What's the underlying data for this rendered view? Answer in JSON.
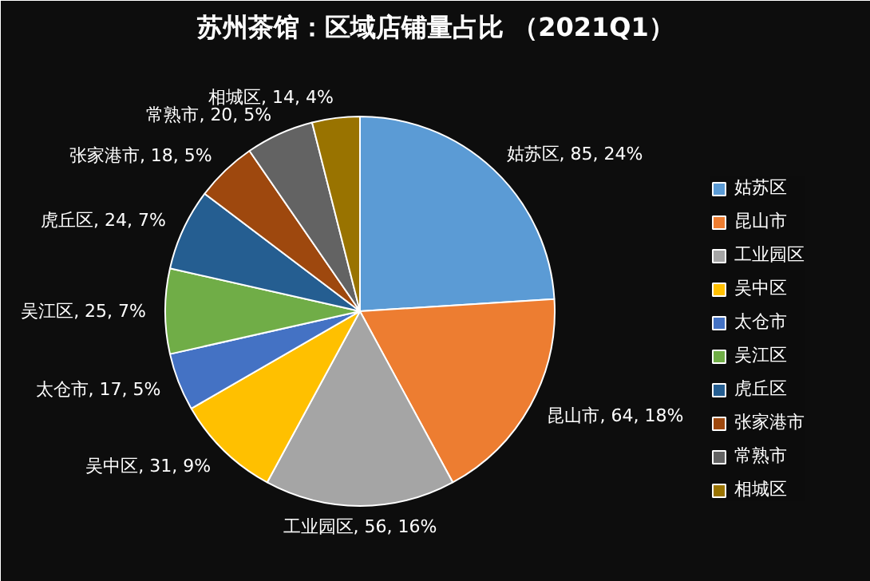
{
  "chart_data": {
    "type": "pie",
    "title": "苏州茶馆：区域店铺量占比 （2021Q1）",
    "categories": [
      "姑苏区",
      "昆山市",
      "工业园区",
      "吴中区",
      "太仓市",
      "吴江区",
      "虎丘区",
      "张家港市",
      "常熟市",
      "相城区"
    ],
    "values": [
      85,
      64,
      56,
      31,
      17,
      25,
      24,
      18,
      20,
      14
    ],
    "colors": [
      "#5b9bd5",
      "#ed7d31",
      "#a5a5a5",
      "#ffc000",
      "#4472c4",
      "#70ad47",
      "#255e91",
      "#9e480e",
      "#636363",
      "#997300"
    ],
    "value_labels": [
      "姑苏区, 85, 24%",
      "昆山市, 64, 18%",
      "工业园区, 56, 16%",
      "吴中区, 31, 9%",
      "太仓市, 17, 5%",
      "吴江区, 25, 7%",
      "虎丘区, 24, 7%",
      "张家港市, 18, 5%",
      "常熟市, 20, 5%",
      "相城区, 14, 4%"
    ],
    "legend": "right"
  }
}
